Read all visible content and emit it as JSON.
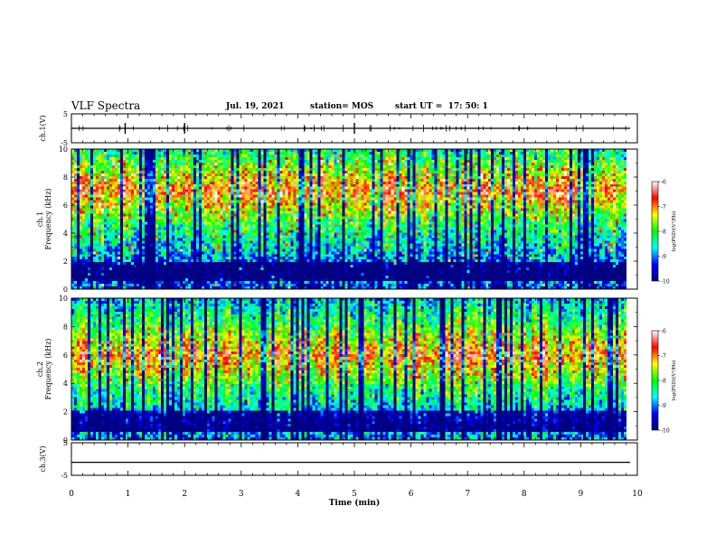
{
  "header": {
    "title": "VLF Spectra",
    "date": "Jul. 19, 2021",
    "station": "station= MOS",
    "start": "start UT =  17: 50: 1"
  },
  "chart_data": {
    "type": "heatmap",
    "x_axis": {
      "label": "Time (min)",
      "range": [
        0,
        10
      ],
      "ticks": [
        0,
        1,
        2,
        3,
        4,
        5,
        6,
        7,
        8,
        9,
        10
      ]
    },
    "panels": [
      {
        "name": "ch1-waveform",
        "type": "line",
        "ylabel": "ch.1(V)",
        "ylim": [
          -5,
          5
        ],
        "yticks": [
          5,
          -5
        ],
        "baseline": 0
      },
      {
        "name": "ch1-spectrogram",
        "type": "heatmap",
        "ylabel_line1": "ch.1",
        "ylabel_line2": "Frequency (kHz)",
        "ylim": [
          0,
          10
        ],
        "yticks": [
          0,
          2,
          4,
          6,
          8,
          10
        ],
        "high_power_band": [
          5,
          9
        ],
        "colorbar": {
          "label": "log(PSD)(V²/Hz)",
          "range": [
            -10,
            -6
          ],
          "ticks": [
            "-6",
            "-7",
            "-8",
            "-9",
            "-10"
          ]
        }
      },
      {
        "name": "ch2-spectrogram",
        "type": "heatmap",
        "ylabel_line1": "ch.2",
        "ylabel_line2": "Frequency (kHz)",
        "ylim": [
          0,
          10
        ],
        "yticks": [
          0,
          2,
          4,
          6,
          8,
          10
        ],
        "high_power_band": [
          4,
          8
        ],
        "colorbar": {
          "label": "log(PSD)(V²/Hz)",
          "range": [
            -10,
            -6
          ],
          "ticks": [
            "-6",
            "-7",
            "-8",
            "-9",
            "-10"
          ]
        }
      },
      {
        "name": "ch3-waveform",
        "type": "line",
        "ylabel": "ch.3(V)",
        "ylim": [
          -5,
          5
        ],
        "yticks": [
          5,
          -5
        ],
        "baseline": -1
      }
    ],
    "colormap": [
      "#000080",
      "#0000ff",
      "#00ffff",
      "#00ff00",
      "#ffff00",
      "#ff0000",
      "#ffffff"
    ]
  }
}
